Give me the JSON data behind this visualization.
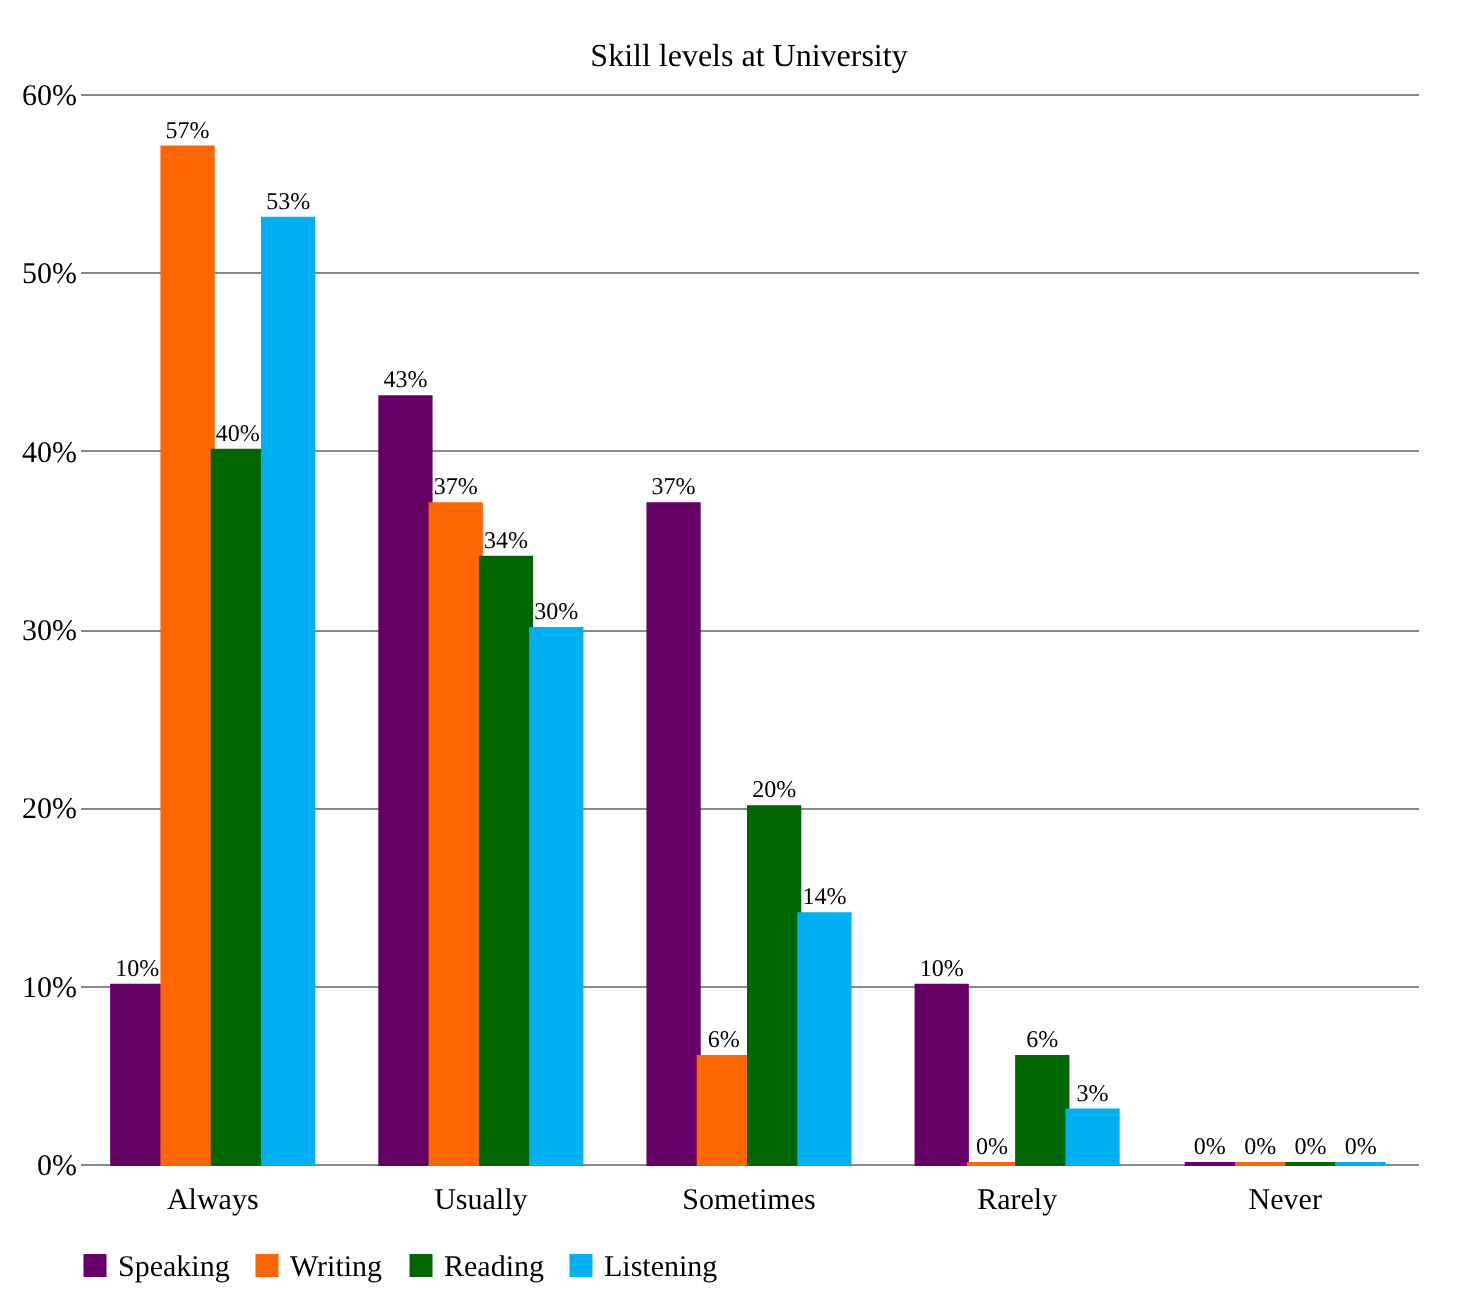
{
  "chart_data": {
    "type": "bar",
    "title": "Skill levels at University",
    "categories": [
      "Always",
      "Usually",
      "Sometimes",
      "Rarely",
      "Never"
    ],
    "series": [
      {
        "name": "Speaking",
        "color": "#660066",
        "values": [
          10,
          43,
          37,
          10,
          0
        ],
        "value_labels": [
          "10%",
          "43%",
          "37%",
          "10%",
          "0%"
        ]
      },
      {
        "name": "Writing",
        "color": "#ff6600",
        "values": [
          57,
          37,
          6,
          0,
          0
        ],
        "value_labels": [
          "57%",
          "37%",
          "6%",
          "0%",
          "0%"
        ]
      },
      {
        "name": "Reading",
        "color": "#006600",
        "values": [
          40,
          34,
          20,
          6,
          0
        ],
        "value_labels": [
          "40%",
          "34%",
          "20%",
          "6%",
          "0%"
        ]
      },
      {
        "name": "Listening",
        "color": "#00b0f0",
        "values": [
          53,
          30,
          14,
          3,
          0
        ],
        "value_labels": [
          "53%",
          "30%",
          "14%",
          "3%",
          "0%"
        ]
      }
    ],
    "ylim": [
      0,
      60
    ],
    "yticks": [
      {
        "value": 0,
        "label": "0%"
      },
      {
        "value": 10,
        "label": "10%"
      },
      {
        "value": 20,
        "label": "20%"
      },
      {
        "value": 30,
        "label": "30%"
      },
      {
        "value": 40,
        "label": "40%"
      },
      {
        "value": 50,
        "label": "50%"
      },
      {
        "value": 60,
        "label": "60%"
      }
    ],
    "grid": "y",
    "legend": "bottom"
  }
}
